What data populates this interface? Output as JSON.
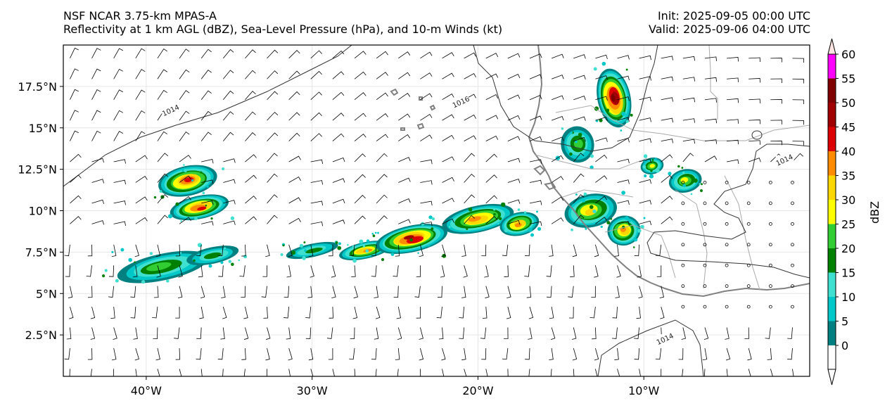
{
  "header": {
    "model": "NSF NCAR 3.75-km MPAS-A",
    "fields": "Reflectivity at 1 km AGL (dBZ), Sea-Level Pressure (hPa), and 10-m Winds (kt)",
    "init": "Init: 2025-09-05 00:00 UTC",
    "valid": "Valid: 2025-09-06 04:00 UTC"
  },
  "axes": {
    "lon_labels": [
      "40°W",
      "30°W",
      "20°W",
      "10°W"
    ],
    "lat_labels": [
      "17.5°N",
      "15°N",
      "12.5°N",
      "10°N",
      "7.5°N",
      "5°N",
      "2.5°N"
    ]
  },
  "map_data": {
    "lon_range": [
      -45,
      0
    ],
    "lat_range": [
      0,
      20
    ],
    "lon_ticks": [
      -40,
      -30,
      -20,
      -10
    ],
    "lat_ticks": [
      17.5,
      15,
      12.5,
      10,
      7.5,
      5,
      2.5
    ],
    "isobar_labels": [
      {
        "text": "1014",
        "lon": -38.5,
        "lat": 16.0
      },
      {
        "text": "1016",
        "lon": -21.0,
        "lat": 16.5
      },
      {
        "text": "1014",
        "lon": -1.5,
        "lat": 13.0
      },
      {
        "text": "1014",
        "lon": -8.7,
        "lat": 2.2
      }
    ],
    "reflectivity_cells": [
      {
        "lon": -37.5,
        "lat": 11.8,
        "rx": 1.8,
        "ry": 0.9,
        "peak": 40
      },
      {
        "lon": -36.8,
        "lat": 10.2,
        "rx": 1.8,
        "ry": 0.7,
        "peak": 40
      },
      {
        "lon": -39.0,
        "lat": 6.6,
        "rx": 2.8,
        "ry": 0.8,
        "peak": 20
      },
      {
        "lon": -36.0,
        "lat": 7.3,
        "rx": 1.6,
        "ry": 0.5,
        "peak": 15
      },
      {
        "lon": -30.0,
        "lat": 7.6,
        "rx": 1.6,
        "ry": 0.4,
        "peak": 15
      },
      {
        "lon": -26.8,
        "lat": 7.6,
        "rx": 1.6,
        "ry": 0.5,
        "peak": 35
      },
      {
        "lon": -24.0,
        "lat": 8.3,
        "rx": 2.2,
        "ry": 0.8,
        "peak": 45
      },
      {
        "lon": -20.0,
        "lat": 9.5,
        "rx": 2.2,
        "ry": 0.8,
        "peak": 35
      },
      {
        "lon": -17.5,
        "lat": 9.2,
        "rx": 1.2,
        "ry": 0.7,
        "peak": 35
      },
      {
        "lon": -14.0,
        "lat": 14.0,
        "rx": 1.0,
        "ry": 1.1,
        "peak": 20
      },
      {
        "lon": -11.8,
        "lat": 16.8,
        "rx": 1.0,
        "ry": 1.8,
        "peak": 50
      },
      {
        "lon": -13.2,
        "lat": 10.0,
        "rx": 1.6,
        "ry": 1.0,
        "peak": 30
      },
      {
        "lon": -11.2,
        "lat": 8.8,
        "rx": 1.0,
        "ry": 0.9,
        "peak": 35
      },
      {
        "lon": -9.5,
        "lat": 12.7,
        "rx": 0.7,
        "ry": 0.5,
        "peak": 25
      },
      {
        "lon": -7.5,
        "lat": 11.8,
        "rx": 1.0,
        "ry": 0.7,
        "peak": 25
      }
    ],
    "colorbar": {
      "label": "dBZ",
      "levels": [
        0,
        5,
        10,
        15,
        20,
        25,
        30,
        35,
        40,
        45,
        50,
        55,
        60
      ],
      "tick_labels": [
        "0",
        "5",
        "10",
        "15",
        "20",
        "25",
        "30",
        "35",
        "40",
        "45",
        "50",
        "55",
        "60"
      ],
      "colors": [
        "#008080",
        "#00c8c8",
        "#40e0d0",
        "#008000",
        "#32cd32",
        "#ffff00",
        "#ffd700",
        "#ff8c00",
        "#dc0000",
        "#a00000",
        "#800000",
        "#ff00ff",
        "#ffe4e1"
      ]
    }
  }
}
